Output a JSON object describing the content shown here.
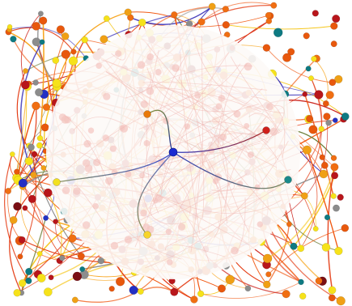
{
  "diagram": {
    "kind": "network-graph",
    "background": "#ffffff",
    "edge_palette": [
      "#f0540c",
      "#e3360d",
      "#f7a41c",
      "#c9170f",
      "#f5c518",
      "#3a32b8",
      "#6e7f3a",
      "#8c8c8c"
    ],
    "node_palette": [
      "#f6e21a",
      "#e8580d",
      "#b8161b",
      "#f0a015",
      "#8c8c8c",
      "#2330c4",
      "#0e7a82",
      "#f06e12",
      "#7a0f14"
    ],
    "focus_lens": {
      "fill": "#fdfaf7",
      "opacity": 0.9,
      "shape": "circle"
    },
    "focus_node": {
      "color": "#1a2ad1",
      "label": ""
    },
    "focus_neighbors": [
      {
        "color": "#cf1f1a",
        "edge_color": "#2638c4",
        "edge_color2": "#b0241b"
      },
      {
        "color": "#e8780a",
        "edge_color": "#1c2a9e",
        "edge_color2": "#7a8c3e"
      },
      {
        "color": "#f2e020",
        "edge_color": "#3a4bd0",
        "edge_color2": "#8b9460"
      },
      {
        "color": "#f6d42a",
        "edge_color": "#5a68c8",
        "edge_color2": "#8e8f55"
      },
      {
        "color": "#1b8a8a",
        "edge_color": "#2a36b5",
        "edge_color2": "#7c8a5a"
      }
    ]
  }
}
